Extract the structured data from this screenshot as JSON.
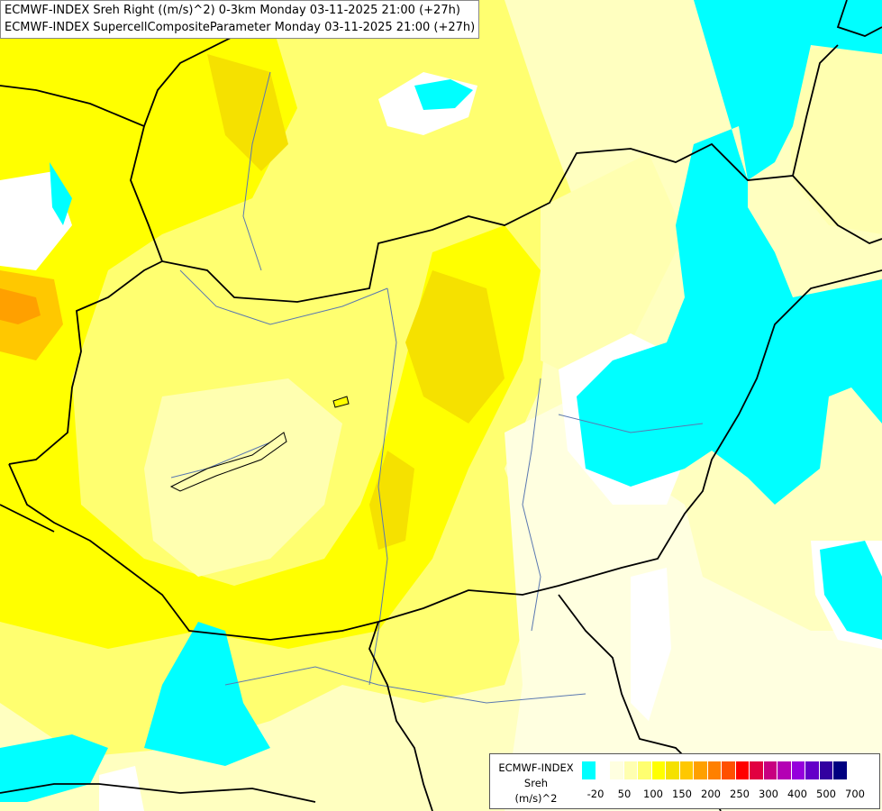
{
  "title": {
    "line1": "ECMWF-INDEX Sreh Right ((m/s)^2) 0-3km Monday 03-11-2025 21:00 (+27h)",
    "line2": "ECMWF-INDEX SupercellCompositeParameter Monday 03-11-2025 21:00 (+27h)"
  },
  "legend": {
    "model": "ECMWF-INDEX",
    "param": "Sreh",
    "unit": "(m/s)^2",
    "colors": [
      "#00ffff",
      "#ffffff",
      "#ffffe0",
      "#ffffb0",
      "#ffff70",
      "#ffff00",
      "#f5e100",
      "#ffc800",
      "#ffa000",
      "#ff8000",
      "#ff5000",
      "#ff0000",
      "#e10040",
      "#c80080",
      "#b400b4",
      "#9600dc",
      "#6400c8",
      "#3200a0",
      "#000080"
    ],
    "ticks": [
      "-20",
      "50",
      "100",
      "150",
      "200",
      "250",
      "300",
      "400",
      "500",
      "700"
    ]
  }
}
